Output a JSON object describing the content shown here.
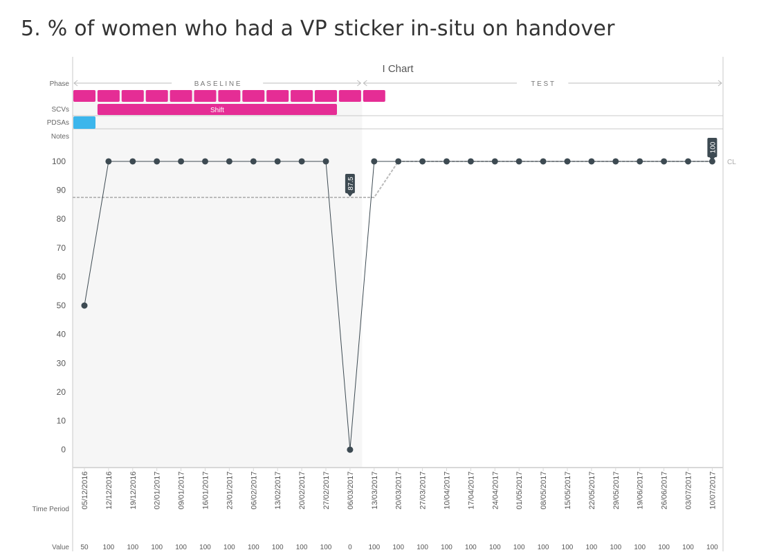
{
  "page": {
    "title": "5. % of women who had a VP sticker in-situ on handover"
  },
  "chart_data": {
    "type": "line",
    "title": "I Chart",
    "x_label": "Time Period",
    "value_row_label": "Value",
    "x": [
      "05/12/2016",
      "12/12/2016",
      "19/12/2016",
      "02/01/2017",
      "09/01/2017",
      "16/01/2017",
      "23/01/2017",
      "06/02/2017",
      "13/02/2017",
      "20/02/2017",
      "27/02/2017",
      "06/03/2017",
      "13/03/2017",
      "20/03/2017",
      "27/03/2017",
      "10/04/2017",
      "17/04/2017",
      "24/04/2017",
      "01/05/2017",
      "08/05/2017",
      "15/05/2017",
      "22/05/2017",
      "29/05/2017",
      "19/06/2017",
      "26/06/2017",
      "03/07/2017",
      "10/07/2017"
    ],
    "values": [
      50,
      100,
      100,
      100,
      100,
      100,
      100,
      100,
      100,
      100,
      100,
      0,
      100,
      100,
      100,
      100,
      100,
      100,
      100,
      100,
      100,
      100,
      100,
      100,
      100,
      100,
      100
    ],
    "value_labels": [
      "50",
      "100",
      "100",
      "100",
      "100",
      "100",
      "100",
      "100",
      "100",
      "100",
      "100",
      "0",
      "100",
      "100",
      "100",
      "100",
      "100",
      "100",
      "100",
      "100",
      "100",
      "100",
      "100",
      "100",
      "100",
      "100",
      "100"
    ],
    "y_ticks": [
      0,
      10,
      20,
      30,
      40,
      50,
      60,
      70,
      80,
      90,
      100
    ],
    "ylim": [
      -5,
      106
    ],
    "grid": false,
    "center_line": {
      "label": "CL",
      "points": [
        [
          0,
          87.5
        ],
        [
          12,
          87.5
        ],
        [
          13,
          100
        ],
        [
          26,
          100
        ]
      ]
    },
    "point_callouts": [
      {
        "index": 11,
        "label": "87.5",
        "anchor_value": 87.5
      },
      {
        "index": 26,
        "label": "100",
        "anchor_value": 100
      }
    ],
    "phases": {
      "row_label": "Phase",
      "items": [
        {
          "name": "BASELINE",
          "from": 0,
          "to": 11
        },
        {
          "name": "TEST",
          "from": 12,
          "to": 26
        }
      ],
      "baseline_shaded_through": 11
    },
    "rows": {
      "scv_label": "SCVs",
      "pdsa_label": "PDSAs",
      "notes_label": "Notes"
    },
    "scv_blocks": [
      0,
      1,
      2,
      3,
      4,
      5,
      6,
      7,
      8,
      9,
      10,
      11,
      12
    ],
    "shift": {
      "label": "Shift",
      "from": 1,
      "to": 10
    },
    "pdsa_blocks": [
      0
    ],
    "colors": {
      "line": "#3d4a52",
      "marker": "#3d4a52",
      "center_line": "#bbbbbb",
      "scv": "#e52d95",
      "pdsa": "#3cb6ec",
      "baseline_bg": "#f6f6f6",
      "callout": "#3d4a52"
    }
  }
}
